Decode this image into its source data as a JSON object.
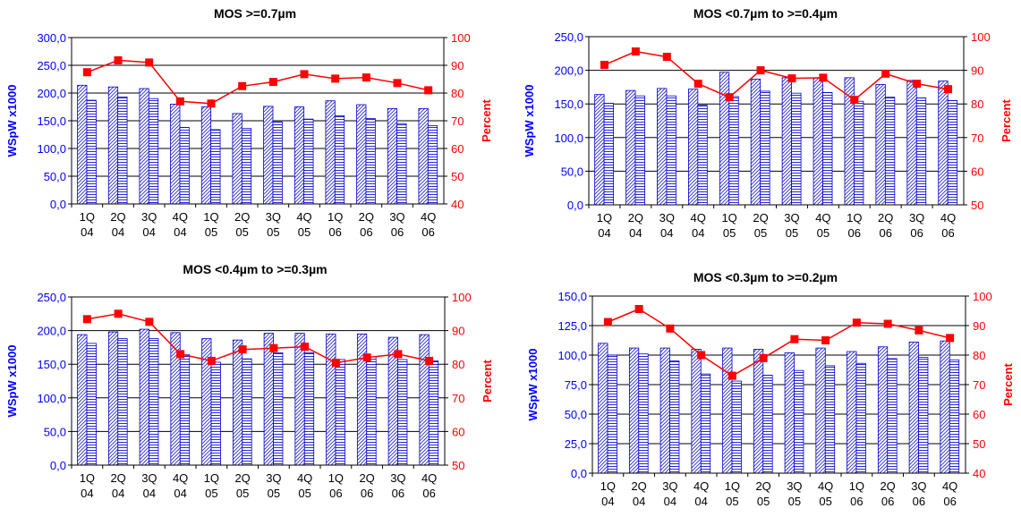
{
  "colors": {
    "bar_stroke": "#0000cc",
    "bar_fill": "#ffffff",
    "hatch": "#2a2ad0",
    "line": "#ff0000",
    "left_axis_text": "#0000ff",
    "right_axis_text": "#ff0000",
    "grid": "#000000",
    "plot_bg": "#ffffff"
  },
  "chart_data": [
    {
      "type": "bar",
      "title": "MOS >=0.7µm",
      "ylabel": "WSpW x1000",
      "y2label": "Percent",
      "categories": [
        "1Q 04",
        "2Q 04",
        "3Q 04",
        "4Q 04",
        "1Q 05",
        "2Q 05",
        "3Q 05",
        "4Q 05",
        "1Q 06",
        "2Q 06",
        "3Q 06",
        "4Q 06"
      ],
      "ylim": [
        0,
        300
      ],
      "yticks": [
        0,
        50,
        100,
        150,
        200,
        250,
        300
      ],
      "yticklabels": [
        "0,0",
        "50,0",
        "100,0",
        "150,0",
        "200,0",
        "250,0",
        "300,0"
      ],
      "y2lim": [
        40,
        100
      ],
      "y2ticks": [
        40,
        50,
        60,
        70,
        80,
        90,
        100
      ],
      "series": [
        {
          "kind": "bar",
          "pattern": "diagonal",
          "values": [
            214,
            211,
            208,
            180,
            175,
            163,
            176,
            175,
            186,
            179,
            172,
            172
          ]
        },
        {
          "kind": "bar",
          "pattern": "horizontal",
          "values": [
            187,
            193,
            190,
            138,
            134,
            136,
            148,
            153,
            159,
            154,
            145,
            141
          ]
        },
        {
          "kind": "line",
          "axis": "right",
          "values": [
            87.5,
            91.8,
            91.0,
            77.0,
            76.2,
            82.5,
            84.0,
            86.8,
            85.2,
            85.6,
            83.6,
            81.0
          ]
        }
      ],
      "grid": true
    },
    {
      "type": "bar",
      "title": "MOS <0.7µm to >=0.4µm",
      "ylabel": "WSpW x1000",
      "y2label": "Percent",
      "categories": [
        "1Q 04",
        "2Q 04",
        "3Q 04",
        "4Q 04",
        "1Q 05",
        "2Q 05",
        "3Q 05",
        "4Q 05",
        "1Q 06",
        "2Q 06",
        "3Q 06",
        "4Q 06"
      ],
      "ylim": [
        0,
        250
      ],
      "yticks": [
        0,
        50,
        100,
        150,
        200,
        250
      ],
      "yticklabels": [
        "0,0",
        "50,0",
        "100,0",
        "150,0",
        "200,0",
        "250,0"
      ],
      "y2lim": [
        50,
        100
      ],
      "y2ticks": [
        50,
        60,
        70,
        80,
        90,
        100
      ],
      "series": [
        {
          "kind": "bar",
          "pattern": "diagonal",
          "values": [
            164,
            170,
            173,
            172,
            197,
            187,
            189,
            189,
            189,
            179,
            185,
            184
          ]
        },
        {
          "kind": "bar",
          "pattern": "horizontal",
          "values": [
            151,
            162,
            162,
            148,
            161,
            169,
            166,
            167,
            154,
            160,
            159,
            155
          ]
        },
        {
          "kind": "line",
          "axis": "right",
          "values": [
            91.6,
            95.6,
            94.0,
            86.0,
            82.0,
            90.0,
            87.6,
            87.8,
            81.2,
            89.0,
            86.0,
            84.4
          ]
        }
      ],
      "grid": true
    },
    {
      "type": "bar",
      "title": "MOS <0.4µm to >=0.3µm",
      "ylabel": "WSpW x1000",
      "y2label": "Percent",
      "categories": [
        "1Q 04",
        "2Q 04",
        "3Q 04",
        "4Q 04",
        "1Q 05",
        "2Q 05",
        "3Q 05",
        "4Q 05",
        "1Q 06",
        "2Q 06",
        "3Q 06",
        "4Q 06"
      ],
      "ylim": [
        0,
        250
      ],
      "yticks": [
        0,
        50,
        100,
        150,
        200,
        250
      ],
      "yticklabels": [
        "0,0",
        "50,0",
        "100,0",
        "150,0",
        "200,0",
        "250,0"
      ],
      "y2lim": [
        50,
        100
      ],
      "y2ticks": [
        50,
        60,
        70,
        80,
        90,
        100
      ],
      "series": [
        {
          "kind": "bar",
          "pattern": "diagonal",
          "values": [
            194,
            198,
            202,
            197,
            188,
            186,
            196,
            196,
            195,
            195,
            190,
            194
          ]
        },
        {
          "kind": "bar",
          "pattern": "horizontal",
          "values": [
            181,
            188,
            188,
            164,
            153,
            158,
            167,
            167,
            157,
            161,
            157,
            155
          ]
        },
        {
          "kind": "line",
          "axis": "right",
          "values": [
            93.4,
            95.0,
            92.6,
            83.0,
            81.0,
            84.4,
            84.8,
            85.2,
            80.4,
            82.0,
            83.0,
            81.0
          ]
        }
      ],
      "grid": true
    },
    {
      "type": "bar",
      "title": "MOS <0.3µm to >=0.2µm",
      "ylabel": "WSpW x1000",
      "y2label": "Percent",
      "categories": [
        "1Q 04",
        "2Q 04",
        "3Q 04",
        "4Q 04",
        "1Q 05",
        "2Q 05",
        "3Q 05",
        "4Q 05",
        "1Q 06",
        "2Q 06",
        "3Q 06",
        "4Q 06"
      ],
      "ylim": [
        0,
        150
      ],
      "yticks": [
        0,
        25,
        50,
        75,
        100,
        125,
        150
      ],
      "yticklabels": [
        "0,0",
        "25,0",
        "50,0",
        "75,0",
        "100,0",
        "125,0",
        "150,0"
      ],
      "y2lim": [
        40,
        100
      ],
      "y2ticks": [
        40,
        50,
        60,
        70,
        80,
        90,
        100
      ],
      "series": [
        {
          "kind": "bar",
          "pattern": "diagonal",
          "values": [
            110,
            106,
            106,
            105,
            106,
            105,
            102,
            106,
            103,
            107,
            111,
            112
          ]
        },
        {
          "kind": "bar",
          "pattern": "horizontal",
          "values": [
            100,
            101,
            95,
            84,
            78,
            83,
            87,
            91,
            93,
            97,
            98,
            96
          ]
        },
        {
          "kind": "line",
          "axis": "right",
          "values": [
            91.2,
            95.6,
            89.0,
            80.0,
            73.0,
            79.0,
            85.4,
            85.0,
            91.0,
            90.6,
            88.4,
            85.8
          ]
        }
      ],
      "grid": true
    }
  ]
}
